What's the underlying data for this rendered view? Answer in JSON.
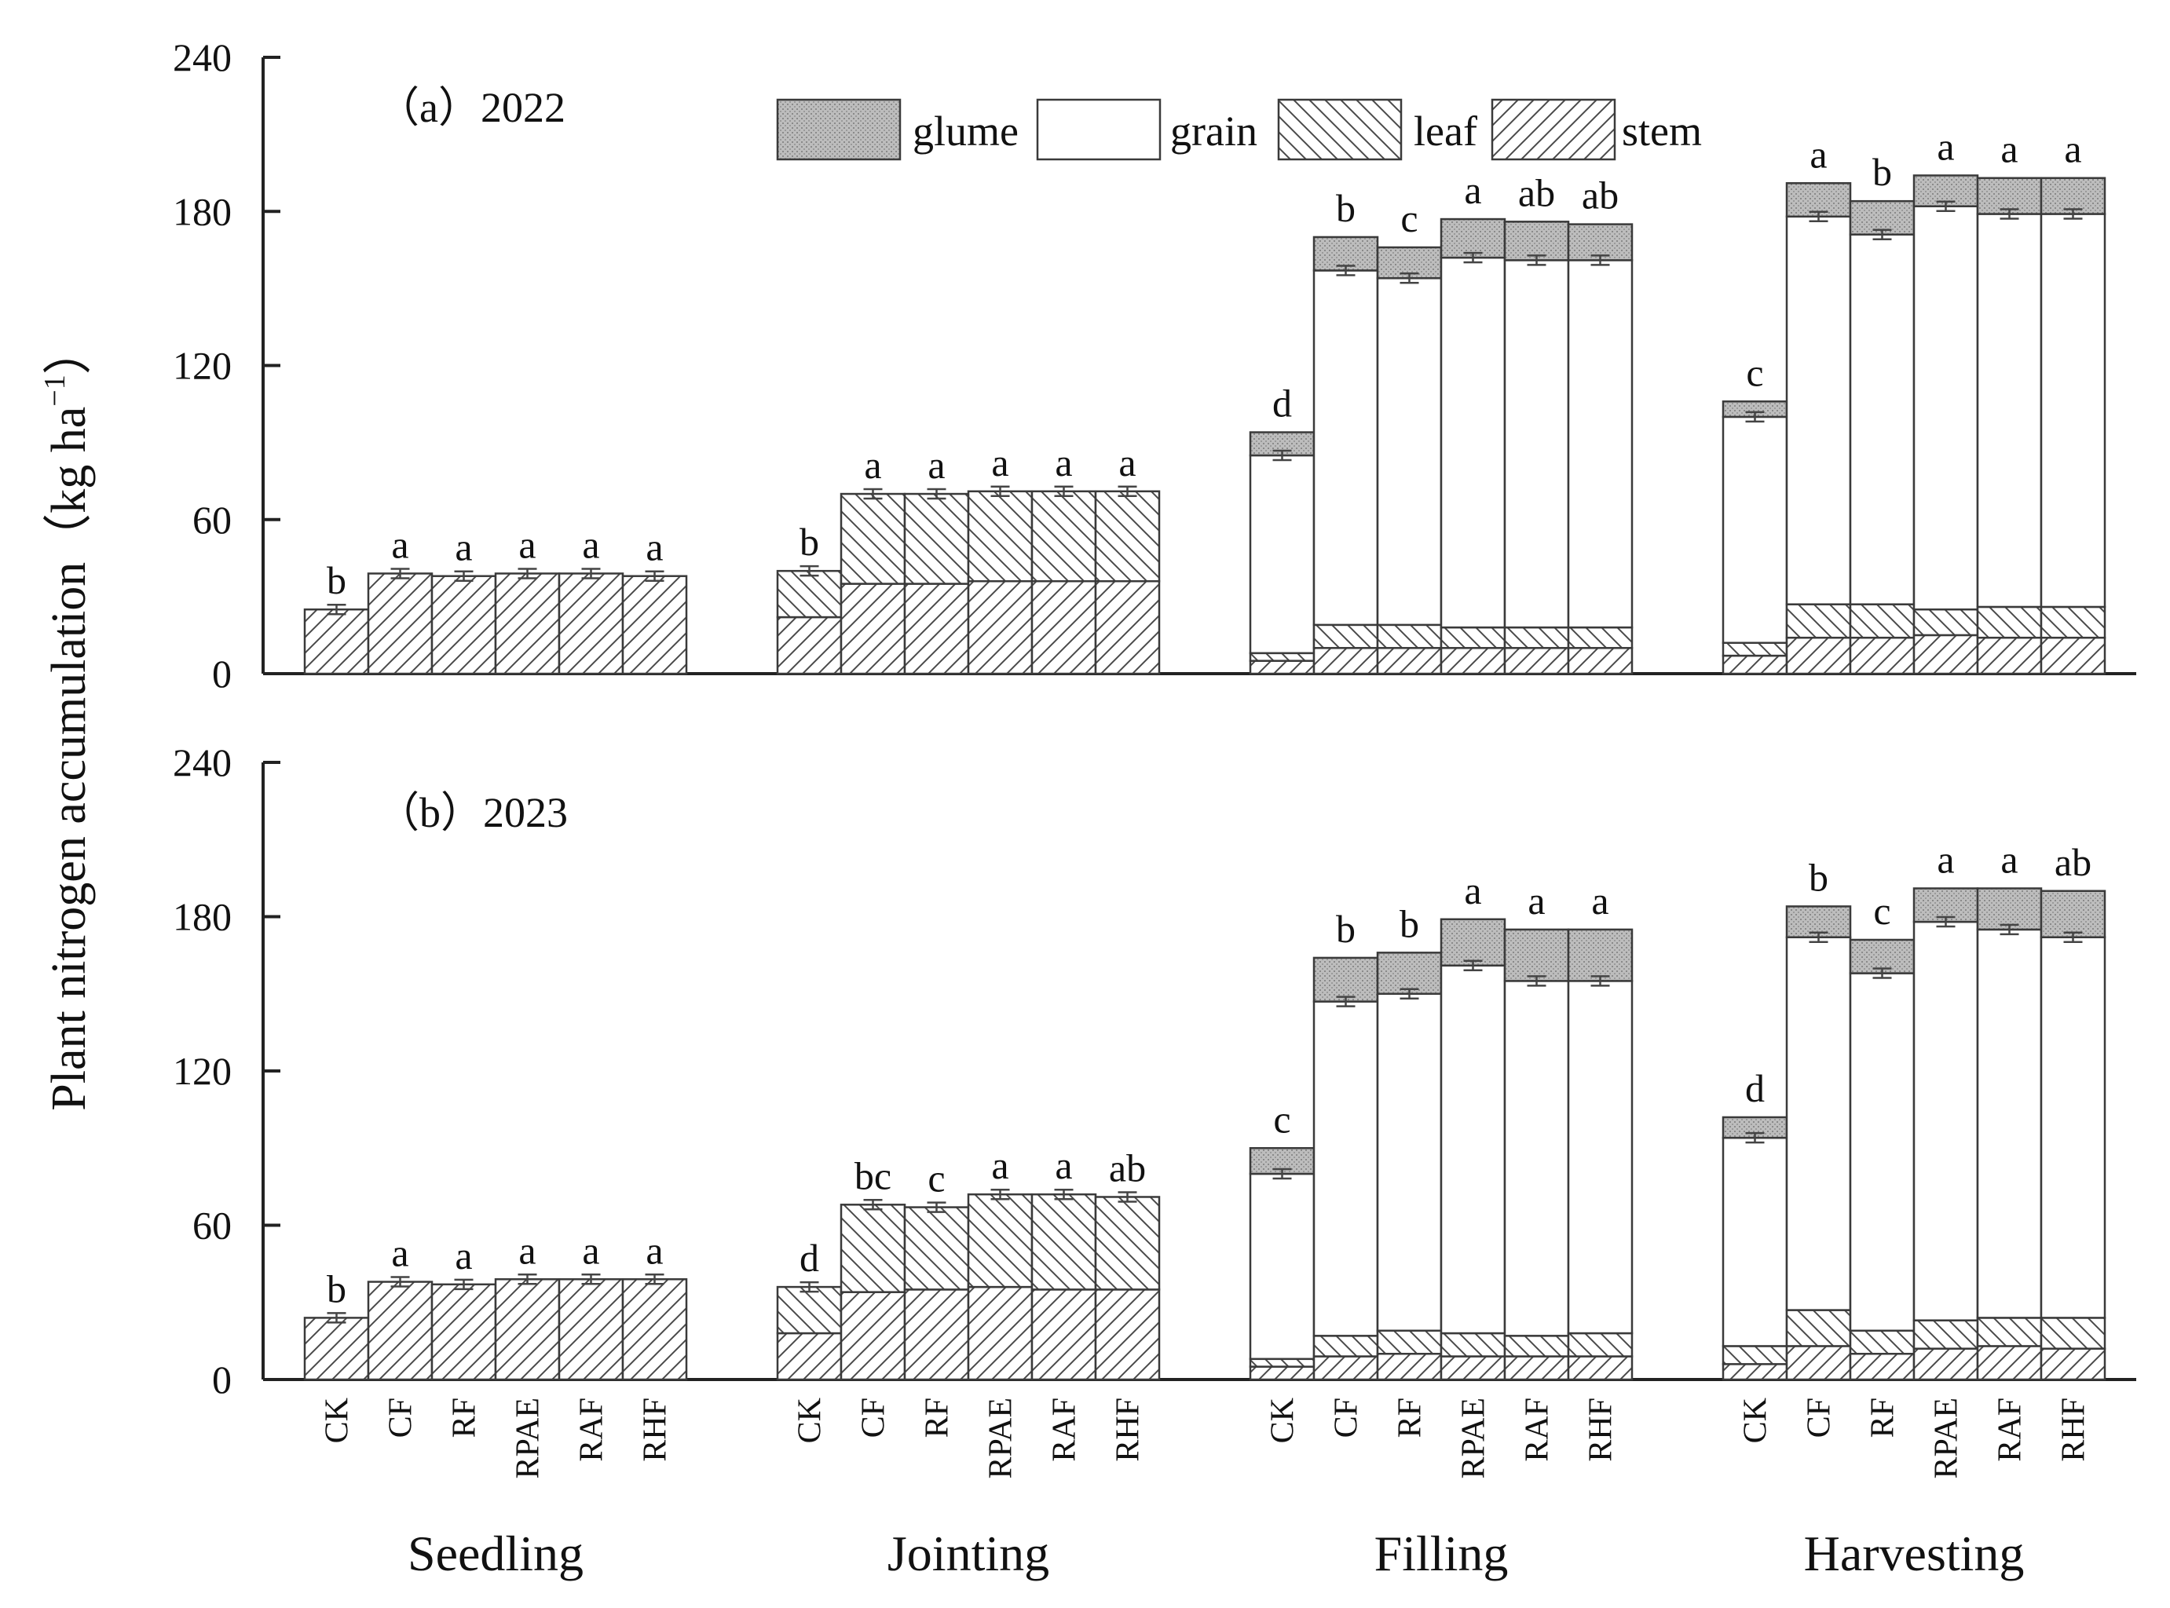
{
  "chart_data": {
    "type": "bar",
    "stacked": true,
    "ylabel": "Plant nitrogen accumulation（kg ha",
    "ylabel_superscript": "−1",
    "ylabel_close": "）",
    "ylim": [
      0,
      240
    ],
    "yticks": [
      "0",
      "60",
      "120",
      "180",
      "240"
    ],
    "stages": [
      "Seedling",
      "Jointing",
      "Filling",
      "Harvesting"
    ],
    "treatments": [
      "CK",
      "CF",
      "RF",
      "RPAE",
      "RAF",
      "RHF"
    ],
    "legend": [
      {
        "key": "glume",
        "label": "glume",
        "fill": "#b4b4b4"
      },
      {
        "key": "grain",
        "label": "grain",
        "fill": "#ffffff"
      },
      {
        "key": "leaf",
        "label": "leaf",
        "fill": "#ffffff"
      },
      {
        "key": "stem",
        "label": "stem",
        "fill": "#ffffff"
      }
    ],
    "panels": [
      {
        "title": "（a）2022",
        "stages": [
          {
            "name": "Seedling",
            "bars": [
              {
                "t": "CK",
                "stem": 25,
                "leaf": 0,
                "grain": 0,
                "glume": 0,
                "letter": "b"
              },
              {
                "t": "CF",
                "stem": 39,
                "leaf": 0,
                "grain": 0,
                "glume": 0,
                "letter": "a"
              },
              {
                "t": "RF",
                "stem": 38,
                "leaf": 0,
                "grain": 0,
                "glume": 0,
                "letter": "a"
              },
              {
                "t": "RPAE",
                "stem": 39,
                "leaf": 0,
                "grain": 0,
                "glume": 0,
                "letter": "a"
              },
              {
                "t": "RAF",
                "stem": 39,
                "leaf": 0,
                "grain": 0,
                "glume": 0,
                "letter": "a"
              },
              {
                "t": "RHF",
                "stem": 38,
                "leaf": 0,
                "grain": 0,
                "glume": 0,
                "letter": "a"
              }
            ]
          },
          {
            "name": "Jointing",
            "bars": [
              {
                "t": "CK",
                "stem": 22,
                "leaf": 18,
                "grain": 0,
                "glume": 0,
                "letter": "b"
              },
              {
                "t": "CF",
                "stem": 35,
                "leaf": 35,
                "grain": 0,
                "glume": 0,
                "letter": "a"
              },
              {
                "t": "RF",
                "stem": 35,
                "leaf": 35,
                "grain": 0,
                "glume": 0,
                "letter": "a"
              },
              {
                "t": "RPAE",
                "stem": 36,
                "leaf": 35,
                "grain": 0,
                "glume": 0,
                "letter": "a"
              },
              {
                "t": "RAF",
                "stem": 36,
                "leaf": 35,
                "grain": 0,
                "glume": 0,
                "letter": "a"
              },
              {
                "t": "RHF",
                "stem": 36,
                "leaf": 35,
                "grain": 0,
                "glume": 0,
                "letter": "a"
              }
            ]
          },
          {
            "name": "Filling",
            "bars": [
              {
                "t": "CK",
                "stem": 5,
                "leaf": 3,
                "grain": 77,
                "glume": 9,
                "letter": "d"
              },
              {
                "t": "CF",
                "stem": 10,
                "leaf": 9,
                "grain": 138,
                "glume": 13,
                "letter": "b"
              },
              {
                "t": "RF",
                "stem": 10,
                "leaf": 9,
                "grain": 135,
                "glume": 12,
                "letter": "c"
              },
              {
                "t": "RPAE",
                "stem": 10,
                "leaf": 8,
                "grain": 144,
                "glume": 15,
                "letter": "a"
              },
              {
                "t": "RAF",
                "stem": 10,
                "leaf": 8,
                "grain": 143,
                "glume": 15,
                "letter": "ab"
              },
              {
                "t": "RHF",
                "stem": 10,
                "leaf": 8,
                "grain": 143,
                "glume": 14,
                "letter": "ab"
              }
            ]
          },
          {
            "name": "Harvesting",
            "bars": [
              {
                "t": "CK",
                "stem": 7,
                "leaf": 5,
                "grain": 88,
                "glume": 6,
                "letter": "c"
              },
              {
                "t": "CF",
                "stem": 14,
                "leaf": 13,
                "grain": 151,
                "glume": 13,
                "letter": "a"
              },
              {
                "t": "RF",
                "stem": 14,
                "leaf": 13,
                "grain": 144,
                "glume": 13,
                "letter": "b"
              },
              {
                "t": "RPAE",
                "stem": 15,
                "leaf": 10,
                "grain": 157,
                "glume": 12,
                "letter": "a"
              },
              {
                "t": "RAF",
                "stem": 14,
                "leaf": 12,
                "grain": 153,
                "glume": 14,
                "letter": "a"
              },
              {
                "t": "RHF",
                "stem": 14,
                "leaf": 12,
                "grain": 153,
                "glume": 14,
                "letter": "a"
              }
            ]
          }
        ]
      },
      {
        "title": "（b）2023",
        "stages": [
          {
            "name": "Seedling",
            "bars": [
              {
                "t": "CK",
                "stem": 24,
                "leaf": 0,
                "grain": 0,
                "glume": 0,
                "letter": "b"
              },
              {
                "t": "CF",
                "stem": 38,
                "leaf": 0,
                "grain": 0,
                "glume": 0,
                "letter": "a"
              },
              {
                "t": "RF",
                "stem": 37,
                "leaf": 0,
                "grain": 0,
                "glume": 0,
                "letter": "a"
              },
              {
                "t": "RPAE",
                "stem": 39,
                "leaf": 0,
                "grain": 0,
                "glume": 0,
                "letter": "a"
              },
              {
                "t": "RAF",
                "stem": 39,
                "leaf": 0,
                "grain": 0,
                "glume": 0,
                "letter": "a"
              },
              {
                "t": "RHF",
                "stem": 39,
                "leaf": 0,
                "grain": 0,
                "glume": 0,
                "letter": "a"
              }
            ]
          },
          {
            "name": "Jointing",
            "bars": [
              {
                "t": "CK",
                "stem": 18,
                "leaf": 18,
                "grain": 0,
                "glume": 0,
                "letter": "d"
              },
              {
                "t": "CF",
                "stem": 34,
                "leaf": 34,
                "grain": 0,
                "glume": 0,
                "letter": "bc"
              },
              {
                "t": "RF",
                "stem": 35,
                "leaf": 32,
                "grain": 0,
                "glume": 0,
                "letter": "c"
              },
              {
                "t": "RPAE",
                "stem": 36,
                "leaf": 36,
                "grain": 0,
                "glume": 0,
                "letter": "a"
              },
              {
                "t": "RAF",
                "stem": 35,
                "leaf": 37,
                "grain": 0,
                "glume": 0,
                "letter": "a"
              },
              {
                "t": "RHF",
                "stem": 35,
                "leaf": 36,
                "grain": 0,
                "glume": 0,
                "letter": "ab"
              }
            ]
          },
          {
            "name": "Filling",
            "bars": [
              {
                "t": "CK",
                "stem": 5,
                "leaf": 3,
                "grain": 72,
                "glume": 10,
                "letter": "c"
              },
              {
                "t": "CF",
                "stem": 9,
                "leaf": 8,
                "grain": 130,
                "glume": 17,
                "letter": "b"
              },
              {
                "t": "RF",
                "stem": 10,
                "leaf": 9,
                "grain": 131,
                "glume": 16,
                "letter": "b"
              },
              {
                "t": "RPAE",
                "stem": 9,
                "leaf": 9,
                "grain": 143,
                "glume": 18,
                "letter": "a"
              },
              {
                "t": "RAF",
                "stem": 9,
                "leaf": 8,
                "grain": 138,
                "glume": 20,
                "letter": "a"
              },
              {
                "t": "RHF",
                "stem": 9,
                "leaf": 9,
                "grain": 137,
                "glume": 20,
                "letter": "a"
              }
            ]
          },
          {
            "name": "Harvesting",
            "bars": [
              {
                "t": "CK",
                "stem": 6,
                "leaf": 7,
                "grain": 81,
                "glume": 8,
                "letter": "d"
              },
              {
                "t": "CF",
                "stem": 13,
                "leaf": 14,
                "grain": 145,
                "glume": 12,
                "letter": "b"
              },
              {
                "t": "RF",
                "stem": 10,
                "leaf": 9,
                "grain": 139,
                "glume": 13,
                "letter": "c"
              },
              {
                "t": "RPAE",
                "stem": 12,
                "leaf": 11,
                "grain": 155,
                "glume": 13,
                "letter": "a"
              },
              {
                "t": "RAF",
                "stem": 13,
                "leaf": 11,
                "grain": 151,
                "glume": 16,
                "letter": "a"
              },
              {
                "t": "RHF",
                "stem": 12,
                "leaf": 12,
                "grain": 148,
                "glume": 18,
                "letter": "ab"
              }
            ]
          }
        ]
      }
    ]
  }
}
